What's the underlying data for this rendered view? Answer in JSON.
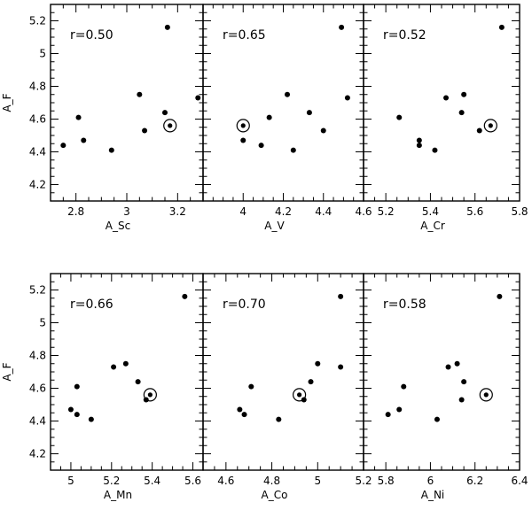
{
  "chart_data": [
    {
      "type": "scatter",
      "xlabel": "A_Sc",
      "ylabel": "A_F",
      "annotation": "r=0.50",
      "xlim": [
        2.7,
        3.3
      ],
      "ylim": [
        4.1,
        5.3
      ],
      "xticks": [
        2.8,
        3,
        3.2
      ],
      "xtick_labels": [
        "2.8",
        "3",
        "3.2"
      ],
      "yticks": [
        4.2,
        4.4,
        4.6,
        4.8,
        5,
        5.2
      ],
      "ytick_labels": [
        "4.2",
        "4.4",
        "4.6",
        "4.8",
        "5",
        "5.2"
      ],
      "points": [
        {
          "x": 2.75,
          "y": 4.44
        },
        {
          "x": 2.81,
          "y": 4.61
        },
        {
          "x": 2.83,
          "y": 4.47
        },
        {
          "x": 2.94,
          "y": 4.41
        },
        {
          "x": 3.05,
          "y": 4.75
        },
        {
          "x": 3.07,
          "y": 4.53
        },
        {
          "x": 3.15,
          "y": 4.64
        },
        {
          "x": 3.16,
          "y": 5.16
        },
        {
          "x": 3.28,
          "y": 4.73
        }
      ],
      "sun": {
        "x": 3.17,
        "y": 4.56
      }
    },
    {
      "type": "scatter",
      "xlabel": "A_V",
      "ylabel": "",
      "annotation": "r=0.65",
      "xlim": [
        3.8,
        4.6
      ],
      "ylim": [
        4.1,
        5.3
      ],
      "xticks": [
        4,
        4.2,
        4.4,
        4.6
      ],
      "xtick_labels": [
        "4",
        "4.2",
        "4.4",
        "4.6"
      ],
      "yticks": [
        4.2,
        4.4,
        4.6,
        4.8,
        5,
        5.2
      ],
      "ytick_labels": [],
      "points": [
        {
          "x": 4.0,
          "y": 4.47
        },
        {
          "x": 4.09,
          "y": 4.44
        },
        {
          "x": 4.13,
          "y": 4.61
        },
        {
          "x": 4.22,
          "y": 4.75
        },
        {
          "x": 4.25,
          "y": 4.41
        },
        {
          "x": 4.33,
          "y": 4.64
        },
        {
          "x": 4.4,
          "y": 4.53
        },
        {
          "x": 4.49,
          "y": 5.16
        },
        {
          "x": 4.52,
          "y": 4.73
        }
      ],
      "sun": {
        "x": 4.0,
        "y": 4.56
      }
    },
    {
      "type": "scatter",
      "xlabel": "A_Cr",
      "ylabel": "",
      "annotation": "r=0.52",
      "xlim": [
        5.1,
        5.8
      ],
      "ylim": [
        4.1,
        5.3
      ],
      "xticks": [
        5.2,
        5.4,
        5.6,
        5.8
      ],
      "xtick_labels": [
        "5.2",
        "5.4",
        "5.6",
        "5.8"
      ],
      "yticks": [
        4.2,
        4.4,
        4.6,
        4.8,
        5,
        5.2
      ],
      "ytick_labels": [],
      "points": [
        {
          "x": 5.26,
          "y": 4.61
        },
        {
          "x": 5.35,
          "y": 4.47
        },
        {
          "x": 5.35,
          "y": 4.44
        },
        {
          "x": 5.42,
          "y": 4.41
        },
        {
          "x": 5.47,
          "y": 4.73
        },
        {
          "x": 5.54,
          "y": 4.64
        },
        {
          "x": 5.55,
          "y": 4.75
        },
        {
          "x": 5.62,
          "y": 4.53
        },
        {
          "x": 5.72,
          "y": 5.16
        }
      ],
      "sun": {
        "x": 5.67,
        "y": 4.56
      }
    },
    {
      "type": "scatter",
      "xlabel": "A_Mn",
      "ylabel": "A_F",
      "annotation": "r=0.66",
      "xlim": [
        4.9,
        5.65
      ],
      "ylim": [
        4.1,
        5.3
      ],
      "xticks": [
        5,
        5.2,
        5.4,
        5.6
      ],
      "xtick_labels": [
        "5",
        "5.2",
        "5.4",
        "5.6"
      ],
      "yticks": [
        4.2,
        4.4,
        4.6,
        4.8,
        5,
        5.2
      ],
      "ytick_labels": [
        "4.2",
        "4.4",
        "4.6",
        "4.8",
        "5",
        "5.2"
      ],
      "points": [
        {
          "x": 5.0,
          "y": 4.47
        },
        {
          "x": 5.03,
          "y": 4.44
        },
        {
          "x": 5.03,
          "y": 4.61
        },
        {
          "x": 5.1,
          "y": 4.41
        },
        {
          "x": 5.21,
          "y": 4.73
        },
        {
          "x": 5.27,
          "y": 4.75
        },
        {
          "x": 5.33,
          "y": 4.64
        },
        {
          "x": 5.37,
          "y": 4.53
        },
        {
          "x": 5.56,
          "y": 5.16
        }
      ],
      "sun": {
        "x": 5.39,
        "y": 4.56
      }
    },
    {
      "type": "scatter",
      "xlabel": "A_Co",
      "ylabel": "",
      "annotation": "r=0.70",
      "xlim": [
        4.5,
        5.2
      ],
      "ylim": [
        4.1,
        5.3
      ],
      "xticks": [
        4.6,
        4.8,
        5,
        5.2
      ],
      "xtick_labels": [
        "4.6",
        "4.8",
        "5",
        "5.2"
      ],
      "yticks": [
        4.2,
        4.4,
        4.6,
        4.8,
        5,
        5.2
      ],
      "ytick_labels": [],
      "points": [
        {
          "x": 4.66,
          "y": 4.47
        },
        {
          "x": 4.68,
          "y": 4.44
        },
        {
          "x": 4.71,
          "y": 4.61
        },
        {
          "x": 4.83,
          "y": 4.41
        },
        {
          "x": 4.94,
          "y": 4.53
        },
        {
          "x": 4.97,
          "y": 4.64
        },
        {
          "x": 5.0,
          "y": 4.75
        },
        {
          "x": 5.1,
          "y": 5.16
        },
        {
          "x": 5.1,
          "y": 4.73
        }
      ],
      "sun": {
        "x": 4.92,
        "y": 4.56
      }
    },
    {
      "type": "scatter",
      "xlabel": "A_Ni",
      "ylabel": "",
      "annotation": "r=0.58",
      "xlim": [
        5.7,
        6.4
      ],
      "ylim": [
        4.1,
        5.3
      ],
      "xticks": [
        5.8,
        6,
        6.2,
        6.4
      ],
      "xtick_labels": [
        "5.8",
        "6",
        "6.2",
        "6.4"
      ],
      "yticks": [
        4.2,
        4.4,
        4.6,
        4.8,
        5,
        5.2
      ],
      "ytick_labels": [],
      "points": [
        {
          "x": 5.81,
          "y": 4.44
        },
        {
          "x": 5.86,
          "y": 4.47
        },
        {
          "x": 5.88,
          "y": 4.61
        },
        {
          "x": 6.03,
          "y": 4.41
        },
        {
          "x": 6.08,
          "y": 4.73
        },
        {
          "x": 6.12,
          "y": 4.75
        },
        {
          "x": 6.14,
          "y": 4.53
        },
        {
          "x": 6.15,
          "y": 4.64
        },
        {
          "x": 6.31,
          "y": 5.16
        }
      ],
      "sun": {
        "x": 6.25,
        "y": 4.56
      }
    }
  ]
}
